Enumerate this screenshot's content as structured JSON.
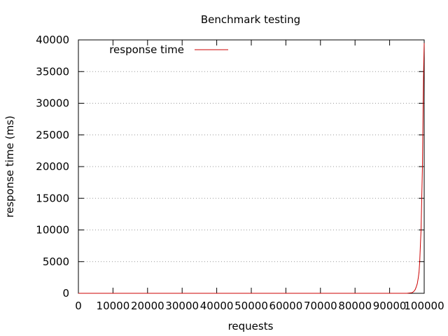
{
  "chart_data": {
    "type": "line",
    "title": "Benchmark testing",
    "xlabel": "requests",
    "ylabel": "response time (ms)",
    "xlim": [
      0,
      100000
    ],
    "ylim": [
      0,
      40000
    ],
    "xticks": [
      0,
      10000,
      20000,
      30000,
      40000,
      50000,
      60000,
      70000,
      80000,
      90000,
      100000
    ],
    "yticks": [
      0,
      5000,
      10000,
      15000,
      20000,
      25000,
      30000,
      35000,
      40000
    ],
    "grid": "horizontal dotted",
    "legend": {
      "placement": "top-left"
    },
    "series": [
      {
        "name": "response time",
        "color": "#cc0000",
        "x": [
          0,
          95000,
          96500,
          97000,
          97400,
          97700,
          98000,
          98300,
          98500,
          98700,
          98900,
          99100,
          99300,
          99500,
          99600,
          99700,
          99800,
          99900,
          100000
        ],
        "y": [
          0,
          0,
          100,
          300,
          600,
          1000,
          1500,
          2500,
          3300,
          5000,
          7700,
          10300,
          15000,
          20000,
          25000,
          30000,
          34000,
          37000,
          39500
        ]
      }
    ]
  }
}
